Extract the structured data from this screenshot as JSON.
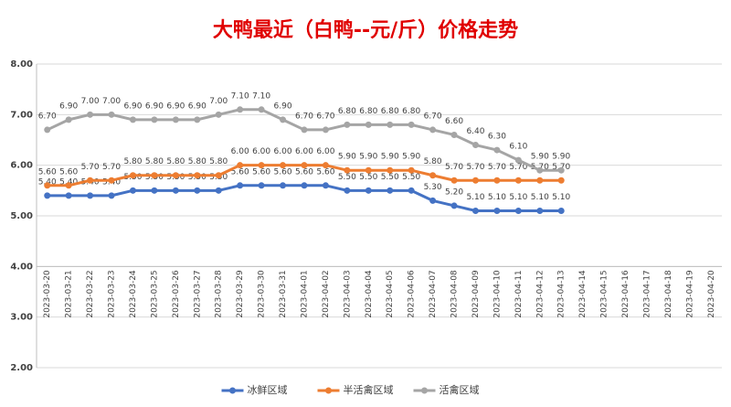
{
  "chart_data": {
    "type": "line",
    "title": "大鸭最近（白鸭--元/斤）价格走势",
    "categories": [
      "2023-03-20",
      "2023-03-21",
      "2023-03-22",
      "2023-03-23",
      "2023-03-24",
      "2023-03-25",
      "2023-03-26",
      "2023-03-27",
      "2023-03-28",
      "2023-03-29",
      "2023-03-30",
      "2023-03-31",
      "2023-04-01",
      "2023-04-02",
      "2023-04-03",
      "2023-04-04",
      "2023-04-05",
      "2023-04-06",
      "2023-04-07",
      "2023-04-08",
      "2023-04-09",
      "2023-04-10",
      "2023-04-11",
      "2023-04-12",
      "2023-04-13",
      "2023-04-14",
      "2023-04-15",
      "2023-04-16",
      "2023-04-17",
      "2023-04-18",
      "2023-04-19",
      "2023-04-20"
    ],
    "series": [
      {
        "name": "冰鲜区域",
        "color": "#4472c4",
        "values": [
          5.4,
          5.4,
          5.4,
          5.4,
          5.5,
          5.5,
          5.5,
          5.5,
          5.5,
          5.6,
          5.6,
          5.6,
          5.6,
          5.6,
          5.5,
          5.5,
          5.5,
          5.5,
          5.3,
          5.2,
          5.1,
          5.1,
          5.1,
          5.1,
          5.1,
          null,
          null,
          null,
          null,
          null,
          null,
          null
        ],
        "value_labels": [
          "5.40",
          "5.40",
          "5.40",
          "5.40",
          "5.50",
          "5.50",
          "5.50",
          "5.50",
          "5.50",
          "5.60",
          "5.60",
          "5.60",
          "5.60",
          "5.60",
          "5.50",
          "5.50",
          "5.50",
          "5.50",
          "5.30",
          "5.20",
          "5.10",
          "5.10",
          "5.10",
          "5.10",
          "5.10",
          null,
          null,
          null,
          null,
          null,
          null,
          null
        ]
      },
      {
        "name": "半活禽区域",
        "color": "#ed7d31",
        "values": [
          5.6,
          5.6,
          5.7,
          5.7,
          5.8,
          5.8,
          5.8,
          5.8,
          5.8,
          6.0,
          6.0,
          6.0,
          6.0,
          6.0,
          5.9,
          5.9,
          5.9,
          5.9,
          5.8,
          5.7,
          5.7,
          5.7,
          5.7,
          5.7,
          5.7,
          null,
          null,
          null,
          null,
          null,
          null,
          null
        ],
        "value_labels": [
          "5.60",
          "5.60",
          "5.70",
          "5.70",
          "5.80",
          "5.80",
          "5.80",
          "5.80",
          "5.80",
          "6.00",
          "6.00",
          "6.00",
          "6.00",
          "6.00",
          "5.90",
          "5.90",
          "5.90",
          "5.90",
          "5.80",
          "5.70",
          "5.70",
          "5.70",
          "5.70",
          "5.70",
          "5.70",
          null,
          null,
          null,
          null,
          null,
          null,
          null
        ]
      },
      {
        "name": "活禽区域",
        "color": "#a5a5a5",
        "values": [
          6.7,
          6.9,
          7.0,
          7.0,
          6.9,
          6.9,
          6.9,
          6.9,
          7.0,
          7.1,
          7.1,
          6.9,
          6.7,
          6.7,
          6.8,
          6.8,
          6.8,
          6.8,
          6.7,
          6.6,
          6.4,
          6.3,
          6.1,
          5.9,
          5.9,
          null,
          null,
          null,
          null,
          null,
          null,
          null
        ],
        "value_labels": [
          "6.70",
          "6.90",
          "7.00",
          "7.00",
          "6.90",
          "6.90",
          "6.90",
          "6.90",
          "7.00",
          "7.10",
          "7.10",
          "6.90",
          "6.70",
          "6.70",
          "6.80",
          "6.80",
          "6.80",
          "6.80",
          "6.70",
          "6.60",
          "6.40",
          "6.30",
          "6.10",
          "5.90",
          "5.90",
          null,
          null,
          null,
          null,
          null,
          null,
          null
        ]
      }
    ],
    "ylim": [
      2,
      8
    ],
    "yticks": [
      {
        "value": 2,
        "label": "2.00"
      },
      {
        "value": 3,
        "label": "3.00"
      },
      {
        "value": 4,
        "label": "4.00"
      },
      {
        "value": 5,
        "label": "5.00"
      },
      {
        "value": 6,
        "label": "6.00"
      },
      {
        "value": 7,
        "label": "7.00"
      },
      {
        "value": 8,
        "label": "8.00"
      }
    ],
    "x_axis_at": 4,
    "grid": true,
    "legend": "bottom"
  }
}
